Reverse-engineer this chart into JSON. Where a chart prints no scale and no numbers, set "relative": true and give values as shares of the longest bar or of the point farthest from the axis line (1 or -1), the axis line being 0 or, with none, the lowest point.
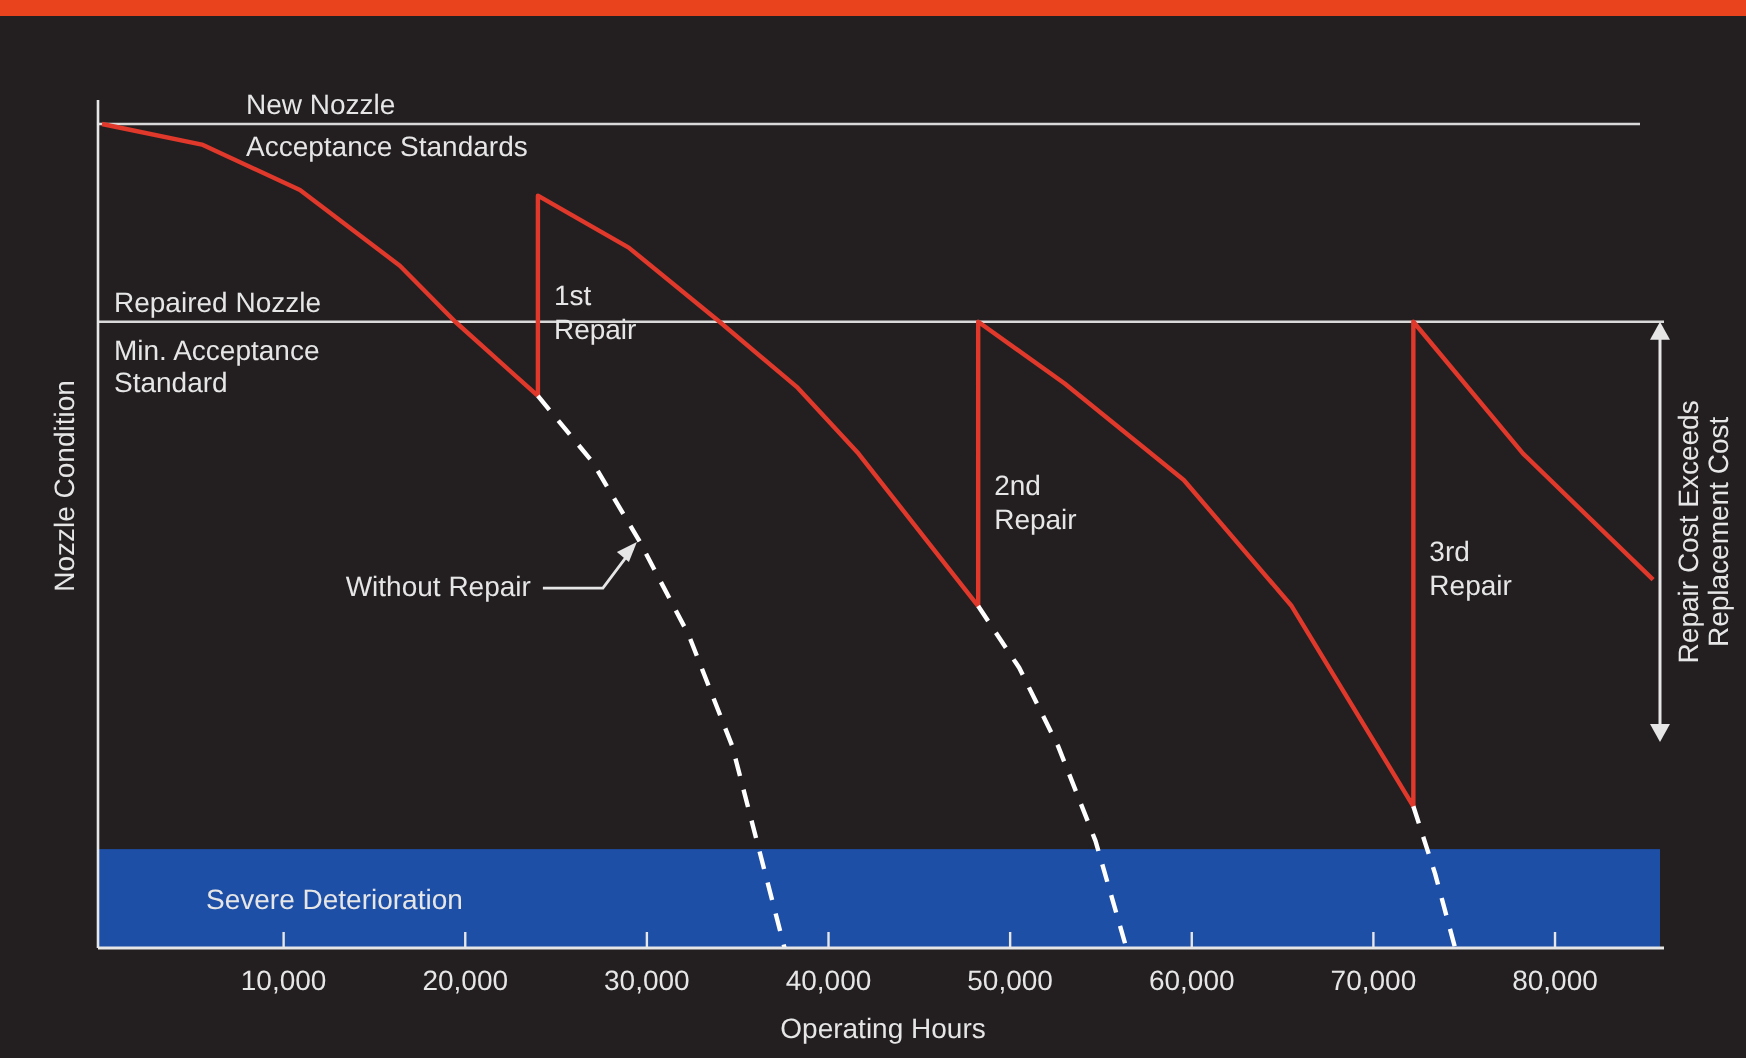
{
  "chart_data": {
    "type": "line",
    "relative": true,
    "xlabel": "Operating Hours",
    "ylabel": "Nozzle Condition",
    "xlim": [
      0,
      86000
    ],
    "xticks": [
      {
        "value": 10000,
        "label": "10,000"
      },
      {
        "value": 20000,
        "label": "20,000"
      },
      {
        "value": 30000,
        "label": "30,000"
      },
      {
        "value": 40000,
        "label": "40,000"
      },
      {
        "value": 50000,
        "label": "50,000"
      },
      {
        "value": 60000,
        "label": "60,000"
      },
      {
        "value": 70000,
        "label": "70,000"
      },
      {
        "value": 80000,
        "label": "80,000"
      }
    ],
    "series": [
      {
        "color": "#e0392b",
        "line_style": "solid",
        "x": [
          0,
          5500,
          10900,
          16400,
          19450,
          24000,
          24000,
          29000,
          34000,
          38300,
          41650,
          48240,
          48240,
          53000,
          59560,
          65500,
          72200,
          72200,
          78240,
          85400
        ],
        "values": [
          1.0,
          0.975,
          0.92,
          0.828,
          0.76,
          0.67,
          0.913,
          0.85,
          0.76,
          0.68,
          0.6,
          0.415,
          0.76,
          0.685,
          0.568,
          0.415,
          0.172,
          0.76,
          0.6,
          0.447
        ]
      },
      {
        "color": "#ffffff",
        "line_style": "dashed",
        "x": [
          24000,
          27000,
          29560,
          32300,
          34700,
          37580
        ],
        "values": [
          0.67,
          0.59,
          0.495,
          0.38,
          0.245,
          0.0
        ]
      },
      {
        "color": "#ffffff",
        "line_style": "dashed",
        "x": [
          48240,
          50500,
          52640,
          54700,
          56400
        ],
        "values": [
          0.415,
          0.34,
          0.245,
          0.13,
          0.0
        ]
      },
      {
        "color": "#ffffff",
        "line_style": "dashed",
        "x": [
          72200,
          73400,
          74500
        ],
        "values": [
          0.172,
          0.09,
          0.0
        ]
      }
    ],
    "ref_lines": [
      {
        "axis": "y",
        "value": 1.0,
        "label": "New Nozzle\nAcceptance Standards",
        "color": "#d9d9d9"
      },
      {
        "axis": "y",
        "value": 0.76,
        "label": "Repaired Nozzle\nMin. Acceptance\nStandard",
        "color": "#d9d9d9"
      }
    ],
    "bands": [
      {
        "axis": "y",
        "from": 0,
        "to": 0.12,
        "label": "Severe Deterioration",
        "color": "#1d4fa6"
      }
    ],
    "annotations": [
      {
        "text": "1st\nRepair",
        "x": 24000,
        "y": 0.78
      },
      {
        "text": "2nd\nRepair",
        "x": 48240,
        "y": 0.55
      },
      {
        "text": "3rd\nRepair",
        "x": 72200,
        "y": 0.47
      },
      {
        "text": "Without Repair",
        "x": 29560,
        "y": 0.495
      },
      "Repair Cost Exceeds\nReplacement Cost"
    ]
  }
}
